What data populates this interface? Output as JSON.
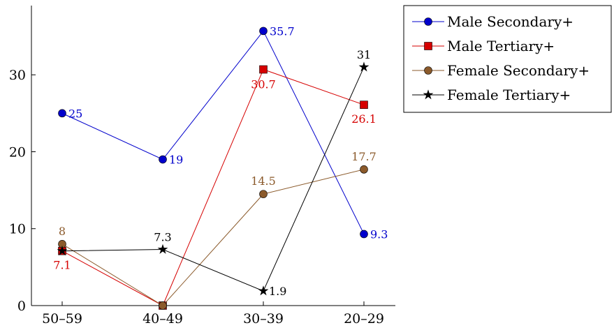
{
  "chart_data": {
    "type": "line",
    "title": "",
    "xlabel": "",
    "ylabel": "",
    "categories": [
      "50–59",
      "40–49",
      "30–39",
      "20–29"
    ],
    "ylim": [
      0,
      39
    ],
    "yticks": [
      0,
      10,
      20,
      30
    ],
    "grid": false,
    "legend_position": "outside-top-right",
    "series": [
      {
        "name": "Male Secondary+",
        "color": "#0000cc",
        "marker": "circle",
        "values": [
          25,
          19,
          35.7,
          9.3
        ],
        "labels": [
          "25",
          "19",
          "35.7",
          "9.3"
        ]
      },
      {
        "name": "Male Tertiary+",
        "color": "#d60000",
        "marker": "square",
        "values": [
          7.1,
          0,
          30.7,
          26.1
        ],
        "labels": [
          "7.1",
          "",
          "30.7",
          "26.1"
        ]
      },
      {
        "name": "Female Secondary+",
        "color": "#8b5a2b",
        "marker": "circle",
        "values": [
          8,
          0,
          14.5,
          17.7
        ],
        "labels": [
          "8",
          "",
          "14.5",
          "17.7"
        ]
      },
      {
        "name": "Female Tertiary+",
        "color": "#000000",
        "marker": "star",
        "values": [
          7.1,
          7.3,
          1.9,
          31
        ],
        "labels": [
          "",
          "7.3",
          "1.9",
          "31"
        ]
      }
    ]
  }
}
